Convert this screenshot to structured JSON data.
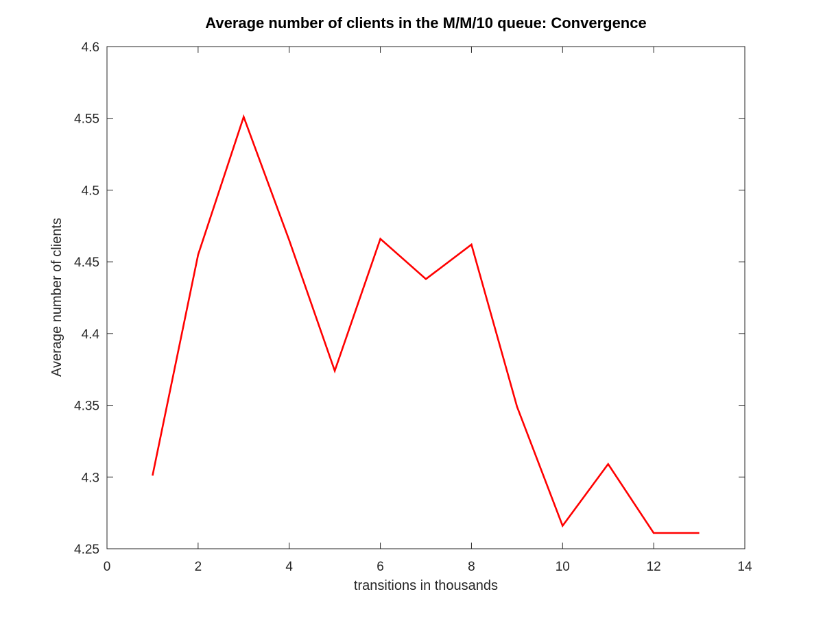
{
  "chart_data": {
    "type": "line",
    "title": "Average number of clients in the M/M/10 queue: Convergence",
    "xlabel": "transitions in thousands",
    "ylabel": "Average number of clients",
    "xlim": [
      0,
      14
    ],
    "ylim": [
      4.25,
      4.6
    ],
    "xticks": [
      0,
      2,
      4,
      6,
      8,
      10,
      12,
      14
    ],
    "xtick_labels": [
      "0",
      "2",
      "4",
      "6",
      "8",
      "10",
      "12",
      "14"
    ],
    "yticks": [
      4.25,
      4.3,
      4.35,
      4.4,
      4.45,
      4.5,
      4.55,
      4.6
    ],
    "ytick_labels": [
      "4.25",
      "4.3",
      "4.35",
      "4.4",
      "4.45",
      "4.5",
      "4.55",
      "4.6"
    ],
    "grid": false,
    "series": [
      {
        "color": "#ff0000",
        "x": [
          1,
          2,
          3,
          4,
          5,
          6,
          7,
          8,
          9,
          10,
          11,
          12,
          13
        ],
        "y": [
          4.301,
          4.455,
          4.551,
          4.465,
          4.374,
          4.466,
          4.438,
          4.462,
          4.349,
          4.266,
          4.309,
          4.261,
          4.261
        ]
      }
    ]
  }
}
